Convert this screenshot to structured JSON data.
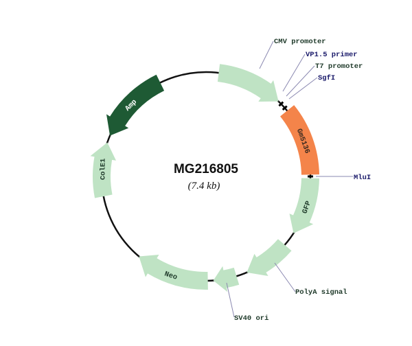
{
  "plasmid": {
    "name": "MG216805",
    "size": "(7.4 kb)"
  },
  "features": [
    {
      "name": "CMV promoter",
      "color": "#bfe3c4",
      "label_outside": true,
      "label_color": "#1f3a2a"
    },
    {
      "name": "Gm5136",
      "color": "#f4844a",
      "label_outside": false,
      "label_color": "#3a2a20"
    },
    {
      "name": "GFP",
      "color": "#bfe3c4",
      "label_outside": false,
      "label_color": "#1f3a2a"
    },
    {
      "name": "PolyA signal",
      "color": "#bfe3c4",
      "label_outside": true,
      "label_color": "#1f3a2a"
    },
    {
      "name": "SV40 ori",
      "color": "#bfe3c4",
      "label_outside": true,
      "label_color": "#1f3a2a"
    },
    {
      "name": "Neo",
      "color": "#bfe3c4",
      "label_outside": false,
      "label_color": "#1f3a2a"
    },
    {
      "name": "ColE1",
      "color": "#bfe3c4",
      "label_outside": false,
      "label_color": "#1f3a2a"
    },
    {
      "name": "Amp",
      "color": "#1e5a34",
      "label_outside": false,
      "label_color": "#ffffff"
    }
  ],
  "markers": [
    {
      "name": "VP1.5 primer",
      "label_color": "#1a1a6a"
    },
    {
      "name": "T7 promoter",
      "label_color": "#1f3a2a"
    },
    {
      "name": "SgfI",
      "label_color": "#1a1a6a"
    },
    {
      "name": "MluI",
      "label_color": "#1a1a6a"
    }
  ]
}
